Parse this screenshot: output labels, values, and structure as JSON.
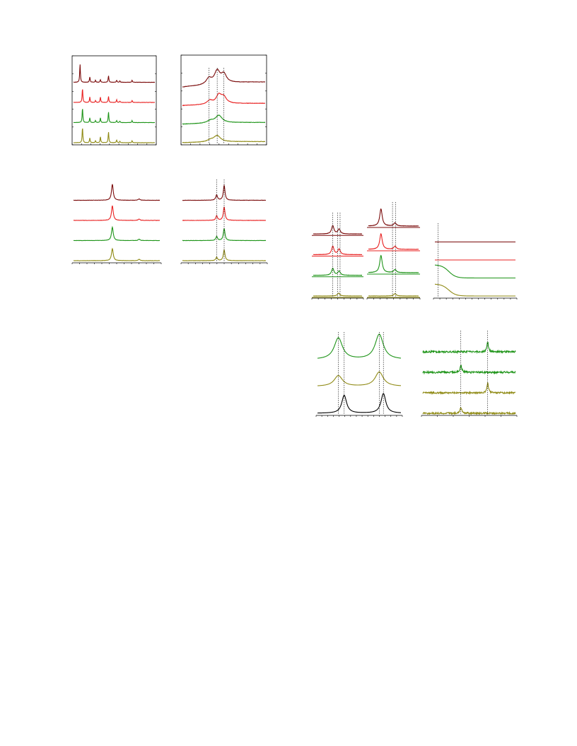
{
  "colors": {
    "maroon": "#7a0a0a",
    "red": "#e82020",
    "green": "#1e9418",
    "olive": "#8f8a14",
    "black": "#000000",
    "axis": "#000000",
    "dash": "#000000"
  },
  "chart_data": [
    {
      "id": "xrd-patterns",
      "type": "line",
      "series": [
        {
          "color": "maroon",
          "peaks": [
            [
              0.08,
              27
            ],
            [
              0.2,
              8
            ],
            [
              0.27,
              3
            ],
            [
              0.33,
              4
            ],
            [
              0.43,
              10
            ],
            [
              0.53,
              3
            ],
            [
              0.57,
              2
            ],
            [
              0.72,
              3
            ]
          ],
          "width": 0.005,
          "noise": 0.2
        },
        {
          "color": "red",
          "peaks": [
            [
              0.11,
              21
            ],
            [
              0.2,
              8
            ],
            [
              0.27,
              3
            ],
            [
              0.33,
              8
            ],
            [
              0.43,
              9
            ],
            [
              0.53,
              4
            ],
            [
              0.57,
              2
            ],
            [
              0.72,
              3
            ]
          ],
          "width": 0.005,
          "noise": 0.2
        },
        {
          "color": "green",
          "peaks": [
            [
              0.11,
              22
            ],
            [
              0.2,
              7
            ],
            [
              0.27,
              3
            ],
            [
              0.33,
              7
            ],
            [
              0.43,
              16
            ],
            [
              0.53,
              3
            ],
            [
              0.57,
              2
            ],
            [
              0.72,
              3
            ]
          ],
          "width": 0.005,
          "noise": 0.2
        },
        {
          "color": "olive",
          "peaks": [
            [
              0.11,
              23
            ],
            [
              0.2,
              7
            ],
            [
              0.27,
              3
            ],
            [
              0.33,
              9
            ],
            [
              0.43,
              16
            ],
            [
              0.53,
              4
            ],
            [
              0.57,
              2
            ],
            [
              0.72,
              3
            ]
          ],
          "width": 0.005,
          "noise": 0.2
        }
      ]
    },
    {
      "id": "broad-spectra",
      "type": "line",
      "series": [
        {
          "color": "maroon",
          "peaks": [
            [
              0.32,
              10
            ],
            [
              0.42,
              20
            ],
            [
              0.5,
              14
            ]
          ],
          "width": 0.04,
          "slope": 18,
          "noise": 0.3
        },
        {
          "color": "red",
          "peaks": [
            [
              0.33,
              6
            ],
            [
              0.44,
              14
            ],
            [
              0.5,
              10
            ]
          ],
          "width": 0.04,
          "slope": 8,
          "noise": 0.3
        },
        {
          "color": "green",
          "peaks": [
            [
              0.34,
              4
            ],
            [
              0.44,
              12
            ]
          ],
          "width": 0.05,
          "slope": 6,
          "noise": 0.3
        },
        {
          "color": "olive",
          "peaks": [
            [
              0.34,
              3
            ],
            [
              0.42,
              10
            ]
          ],
          "width": 0.05,
          "slope": 4,
          "noise": 0.3
        }
      ],
      "markers": [
        0.32,
        0.42,
        0.5
      ]
    },
    {
      "id": "single-peak",
      "type": "line",
      "series": [
        {
          "color": "maroon",
          "peaks": [
            [
              0.45,
              24
            ],
            [
              0.76,
              2
            ]
          ],
          "width": 0.012,
          "noise": 0.2
        },
        {
          "color": "red",
          "peaks": [
            [
              0.45,
              22
            ],
            [
              0.76,
              2
            ]
          ],
          "width": 0.012,
          "noise": 0.2
        },
        {
          "color": "green",
          "peaks": [
            [
              0.45,
              20
            ],
            [
              0.76,
              2
            ]
          ],
          "width": 0.012,
          "noise": 0.2
        },
        {
          "color": "olive",
          "peaks": [
            [
              0.45,
              18
            ],
            [
              0.76,
              2
            ]
          ],
          "width": 0.012,
          "noise": 0.2
        }
      ]
    },
    {
      "id": "doublet",
      "type": "line",
      "series": [
        {
          "color": "maroon",
          "peaks": [
            [
              0.41,
              8
            ],
            [
              0.5,
              22
            ]
          ],
          "width": 0.012,
          "noise": 0.2
        },
        {
          "color": "red",
          "peaks": [
            [
              0.41,
              7
            ],
            [
              0.5,
              20
            ]
          ],
          "width": 0.012,
          "noise": 0.2
        },
        {
          "color": "green",
          "peaks": [
            [
              0.41,
              6
            ],
            [
              0.5,
              18
            ]
          ],
          "width": 0.012,
          "noise": 0.2
        },
        {
          "color": "olive",
          "peaks": [
            [
              0.41,
              5
            ],
            [
              0.5,
              16
            ]
          ],
          "width": 0.012,
          "noise": 0.2
        }
      ],
      "markers": [
        0.41,
        0.5
      ]
    },
    {
      "id": "multiplet-left",
      "type": "line",
      "series": [
        {
          "color": "maroon",
          "peaks": [
            [
              0.4,
              12
            ],
            [
              0.53,
              7
            ]
          ],
          "width": 0.03,
          "noise": 0.15
        },
        {
          "color": "red",
          "peaks": [
            [
              0.4,
              12
            ],
            [
              0.53,
              8
            ]
          ],
          "width": 0.03,
          "noise": 0.15
        },
        {
          "color": "green",
          "peaks": [
            [
              0.4,
              10
            ],
            [
              0.53,
              6
            ]
          ],
          "width": 0.03,
          "noise": 0.15
        },
        {
          "color": "olive",
          "peaks": [
            [
              0.52,
              4
            ]
          ],
          "width": 0.03,
          "noise": 0.15
        }
      ],
      "markers": [
        0.4,
        0.5,
        0.55
      ]
    },
    {
      "id": "multiplet-right",
      "type": "line",
      "series": [
        {
          "color": "maroon",
          "peaks": [
            [
              0.25,
              22
            ],
            [
              0.53,
              4
            ]
          ],
          "width": 0.03,
          "noise": 0.15
        },
        {
          "color": "red",
          "peaks": [
            [
              0.25,
              20
            ],
            [
              0.53,
              4
            ]
          ],
          "width": 0.03,
          "noise": 0.15
        },
        {
          "color": "green",
          "peaks": [
            [
              0.25,
              22
            ],
            [
              0.53,
              4
            ]
          ],
          "width": 0.03,
          "noise": 0.15
        },
        {
          "color": "olive",
          "peaks": [
            [
              0.53,
              3
            ]
          ],
          "width": 0.03,
          "noise": 0.15
        }
      ],
      "markers": [
        0.48,
        0.54
      ]
    },
    {
      "id": "decay-curves",
      "type": "line",
      "series": [
        {
          "color": "maroon",
          "shape": "flat"
        },
        {
          "color": "red",
          "shape": "flat"
        },
        {
          "color": "green",
          "shape": "decay",
          "amp": 22
        },
        {
          "color": "olive",
          "shape": "decay",
          "amp": 20
        }
      ],
      "markers": [
        0.04
      ]
    },
    {
      "id": "broad-doublet",
      "type": "line",
      "series": [
        {
          "color": "green",
          "peaks": [
            [
              0.25,
              24
            ],
            [
              0.74,
              28
            ]
          ],
          "width": 0.06,
          "noise": 0
        },
        {
          "color": "olive",
          "peaks": [
            [
              0.25,
              12
            ],
            [
              0.74,
              16
            ]
          ],
          "width": 0.06,
          "noise": 0
        },
        {
          "color": "black",
          "peaks": [
            [
              0.32,
              20
            ],
            [
              0.79,
              22
            ]
          ],
          "width": 0.035,
          "noise": 0
        }
      ],
      "markers": [
        0.25,
        0.32,
        0.74,
        0.79
      ]
    },
    {
      "id": "noisy-spectra",
      "type": "line",
      "series": [
        {
          "color": "green",
          "peaks": [
            [
              0.7,
              14
            ]
          ],
          "width": 0.01,
          "noise": 1.4
        },
        {
          "color": "green",
          "peaks": [
            [
              0.41,
              10
            ]
          ],
          "width": 0.012,
          "noise": 1.4
        },
        {
          "color": "olive",
          "peaks": [
            [
              0.7,
              14
            ]
          ],
          "width": 0.01,
          "noise": 1.2
        },
        {
          "color": "olive",
          "peaks": [
            [
              0.41,
              8
            ]
          ],
          "width": 0.012,
          "noise": 1.2
        }
      ],
      "markers": [
        0.41,
        0.7
      ]
    }
  ]
}
